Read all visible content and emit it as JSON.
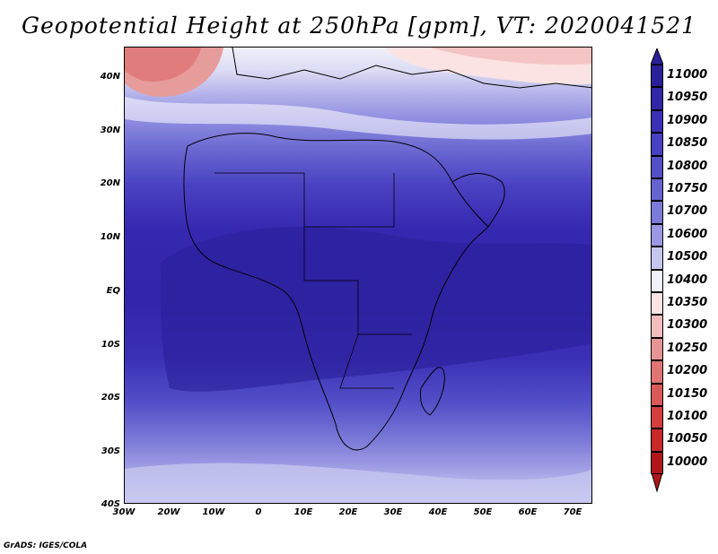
{
  "title": "Geopotential Height at 250hPa [gpm], VT: 2020041521",
  "footer": "GrADS: IGES/COLA",
  "lat_labels": [
    "40N",
    "30N",
    "20N",
    "10N",
    "EQ",
    "10S",
    "20S",
    "30S",
    "40S"
  ],
  "lon_labels": [
    "30W",
    "20W",
    "10W",
    "0",
    "10E",
    "20E",
    "30E",
    "40E",
    "50E",
    "60E",
    "70E"
  ],
  "legend": {
    "levels": [
      "11000",
      "10950",
      "10900",
      "10850",
      "10800",
      "10750",
      "10700",
      "10600",
      "10500",
      "10400",
      "10350",
      "10300",
      "10250",
      "10200",
      "10150",
      "10100",
      "10050",
      "10000"
    ],
    "colors": [
      "#2a1f9a",
      "#3126a8",
      "#3a30b6",
      "#4740c0",
      "#5450c8",
      "#6663d0",
      "#7c7ad8",
      "#9a98e2",
      "#c6c6ef",
      "#f2f2fb",
      "#fbe3e3",
      "#f2bcbc",
      "#e89494",
      "#e07474",
      "#db5858",
      "#d43e3e",
      "#c82a2a",
      "#b01818"
    ]
  },
  "map": {
    "variable": "Geopotential Height",
    "level": "250hPa",
    "units": "gpm",
    "valid_time": "2020041521",
    "lat_range": [
      "40S",
      "40N"
    ],
    "lon_range": [
      "30W",
      "75E"
    ]
  }
}
